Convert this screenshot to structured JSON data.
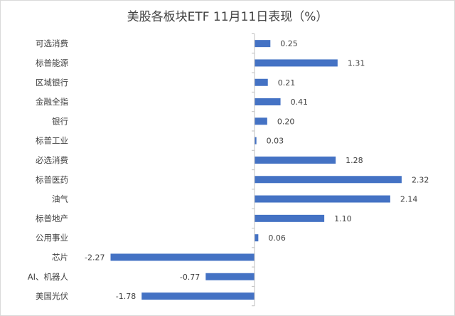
{
  "chart_data": {
    "type": "bar",
    "orientation": "horizontal",
    "title": "美股各板块ETF  11月11日表现（%）",
    "categories": [
      "可选消费",
      "标普能源",
      "区域银行",
      "金融全指",
      "银行",
      "标普工业",
      "必选消费",
      "标普医药",
      "油气",
      "标普地产",
      "公用事业",
      "芯片",
      "AI、机器人",
      "美国光伏"
    ],
    "values": [
      0.25,
      1.31,
      0.21,
      0.41,
      0.2,
      0.03,
      1.28,
      2.32,
      2.14,
      1.1,
      0.06,
      -2.27,
      -0.77,
      -1.78
    ],
    "value_labels": [
      "0.25",
      "1.31",
      "0.21",
      "0.41",
      "0.20",
      "0.03",
      "1.28",
      "2.32",
      "2.14",
      "1.10",
      "0.06",
      "-2.27",
      "-0.77",
      "-1.78"
    ],
    "xlim": [
      -2.5,
      2.5
    ],
    "grid": false,
    "legend": "none",
    "bar_color": "#4472c4",
    "axis_color": "#bfbfbf",
    "text_color": "#404040"
  }
}
